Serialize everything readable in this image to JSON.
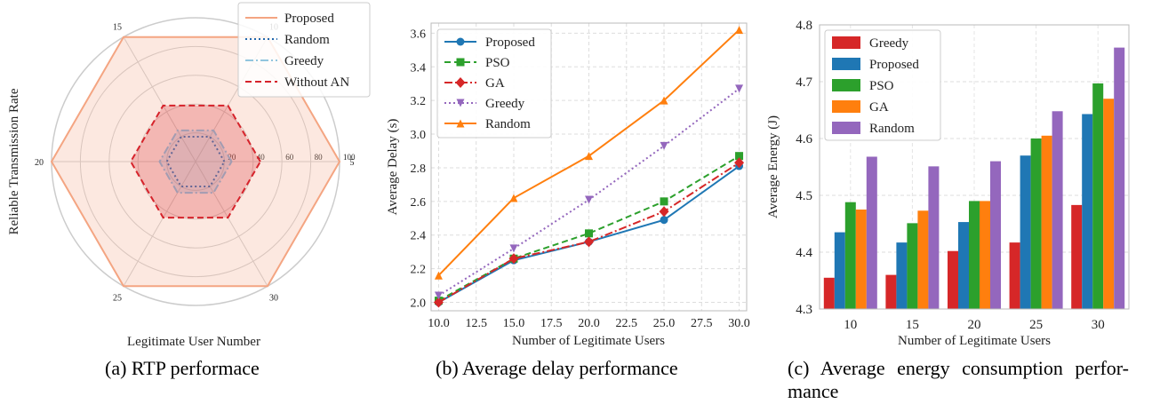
{
  "captions": {
    "a": "(a) RTP performace",
    "b": "(b) Average delay performance",
    "c_line1": "(c)  Average  energy  consumption  perfor-",
    "c_line2": "mance"
  },
  "chart_data": [
    {
      "type": "radar",
      "title": "",
      "xlabel": "Legitimate User Number",
      "ylabel": "Reliable Transmission Rate",
      "categories": [
        "5",
        "10",
        "15",
        "20",
        "25",
        "30"
      ],
      "radial_ticks": [
        "20",
        "40",
        "60",
        "80",
        "100"
      ],
      "rlim": [
        0,
        100
      ],
      "grid": true,
      "legend_position": "top-right",
      "series": [
        {
          "name": "Proposed",
          "values": [
            100,
            100,
            100,
            100,
            100,
            100
          ],
          "color": "#f4a582",
          "style": "solid",
          "fill": true
        },
        {
          "name": "Random",
          "values": [
            20,
            20,
            20,
            20,
            20,
            20
          ],
          "color": "#2166ac",
          "style": "dotted"
        },
        {
          "name": "Greedy",
          "values": [
            25,
            25,
            25,
            25,
            25,
            25
          ],
          "color": "#92c5de",
          "style": "dashdot",
          "fill": true
        },
        {
          "name": "Without AN",
          "values": [
            45,
            45,
            45,
            45,
            45,
            45
          ],
          "color": "#d6232b",
          "style": "dashed",
          "fill": true
        }
      ]
    },
    {
      "type": "line",
      "title": "",
      "xlabel": "Number of Legitimate Users",
      "ylabel": "Average Delay (s)",
      "x": [
        10,
        15,
        20,
        25,
        30
      ],
      "xlim": [
        9.5,
        30.5
      ],
      "ylim": [
        1.95,
        3.66
      ],
      "xticks": [
        "10.0",
        "12.5",
        "15.0",
        "17.5",
        "20.0",
        "22.5",
        "25.0",
        "27.5",
        "30.0"
      ],
      "yticks": [
        "2.0",
        "2.2",
        "2.4",
        "2.6",
        "2.8",
        "3.0",
        "3.2",
        "3.4",
        "3.6"
      ],
      "grid": true,
      "legend_position": "top-left",
      "series": [
        {
          "name": "Proposed",
          "values": [
            2.0,
            2.25,
            2.36,
            2.49,
            2.81
          ],
          "color": "#1f77b4",
          "style": "solid",
          "marker": "circle"
        },
        {
          "name": "PSO",
          "values": [
            2.01,
            2.26,
            2.41,
            2.6,
            2.87
          ],
          "color": "#2ca02c",
          "style": "dashed",
          "marker": "square"
        },
        {
          "name": "GA",
          "values": [
            2.0,
            2.26,
            2.36,
            2.54,
            2.83
          ],
          "color": "#d62728",
          "style": "dashdot",
          "marker": "diamond"
        },
        {
          "name": "Greedy",
          "values": [
            2.04,
            2.32,
            2.61,
            2.93,
            3.27
          ],
          "color": "#9467bd",
          "style": "dotted",
          "marker": "triangle-down"
        },
        {
          "name": "Random",
          "values": [
            2.16,
            2.62,
            2.87,
            3.2,
            3.62
          ],
          "color": "#ff7f0e",
          "style": "solid",
          "marker": "triangle-up"
        }
      ]
    },
    {
      "type": "bar",
      "title": "",
      "xlabel": "Number of Legitimate Users",
      "ylabel": "Average Energy (J)",
      "categories": [
        "10",
        "15",
        "20",
        "25",
        "30"
      ],
      "ylim": [
        4.3,
        4.8
      ],
      "yticks": [
        "4.3",
        "4.4",
        "4.5",
        "4.6",
        "4.7",
        "4.8"
      ],
      "grid": true,
      "legend_position": "top-left",
      "series": [
        {
          "name": "Greedy",
          "values": [
            4.355,
            4.36,
            4.402,
            4.417,
            4.483
          ],
          "color": "#d62728"
        },
        {
          "name": "Proposed",
          "values": [
            4.435,
            4.417,
            4.453,
            4.57,
            4.643
          ],
          "color": "#1f77b4"
        },
        {
          "name": "PSO",
          "values": [
            4.488,
            4.451,
            4.49,
            4.6,
            4.697
          ],
          "color": "#2ca02c"
        },
        {
          "name": "GA",
          "values": [
            4.475,
            4.473,
            4.49,
            4.605,
            4.67
          ],
          "color": "#ff7f0e"
        },
        {
          "name": "Random",
          "values": [
            4.568,
            4.551,
            4.56,
            4.648,
            4.76
          ],
          "color": "#9467bd"
        }
      ]
    }
  ]
}
